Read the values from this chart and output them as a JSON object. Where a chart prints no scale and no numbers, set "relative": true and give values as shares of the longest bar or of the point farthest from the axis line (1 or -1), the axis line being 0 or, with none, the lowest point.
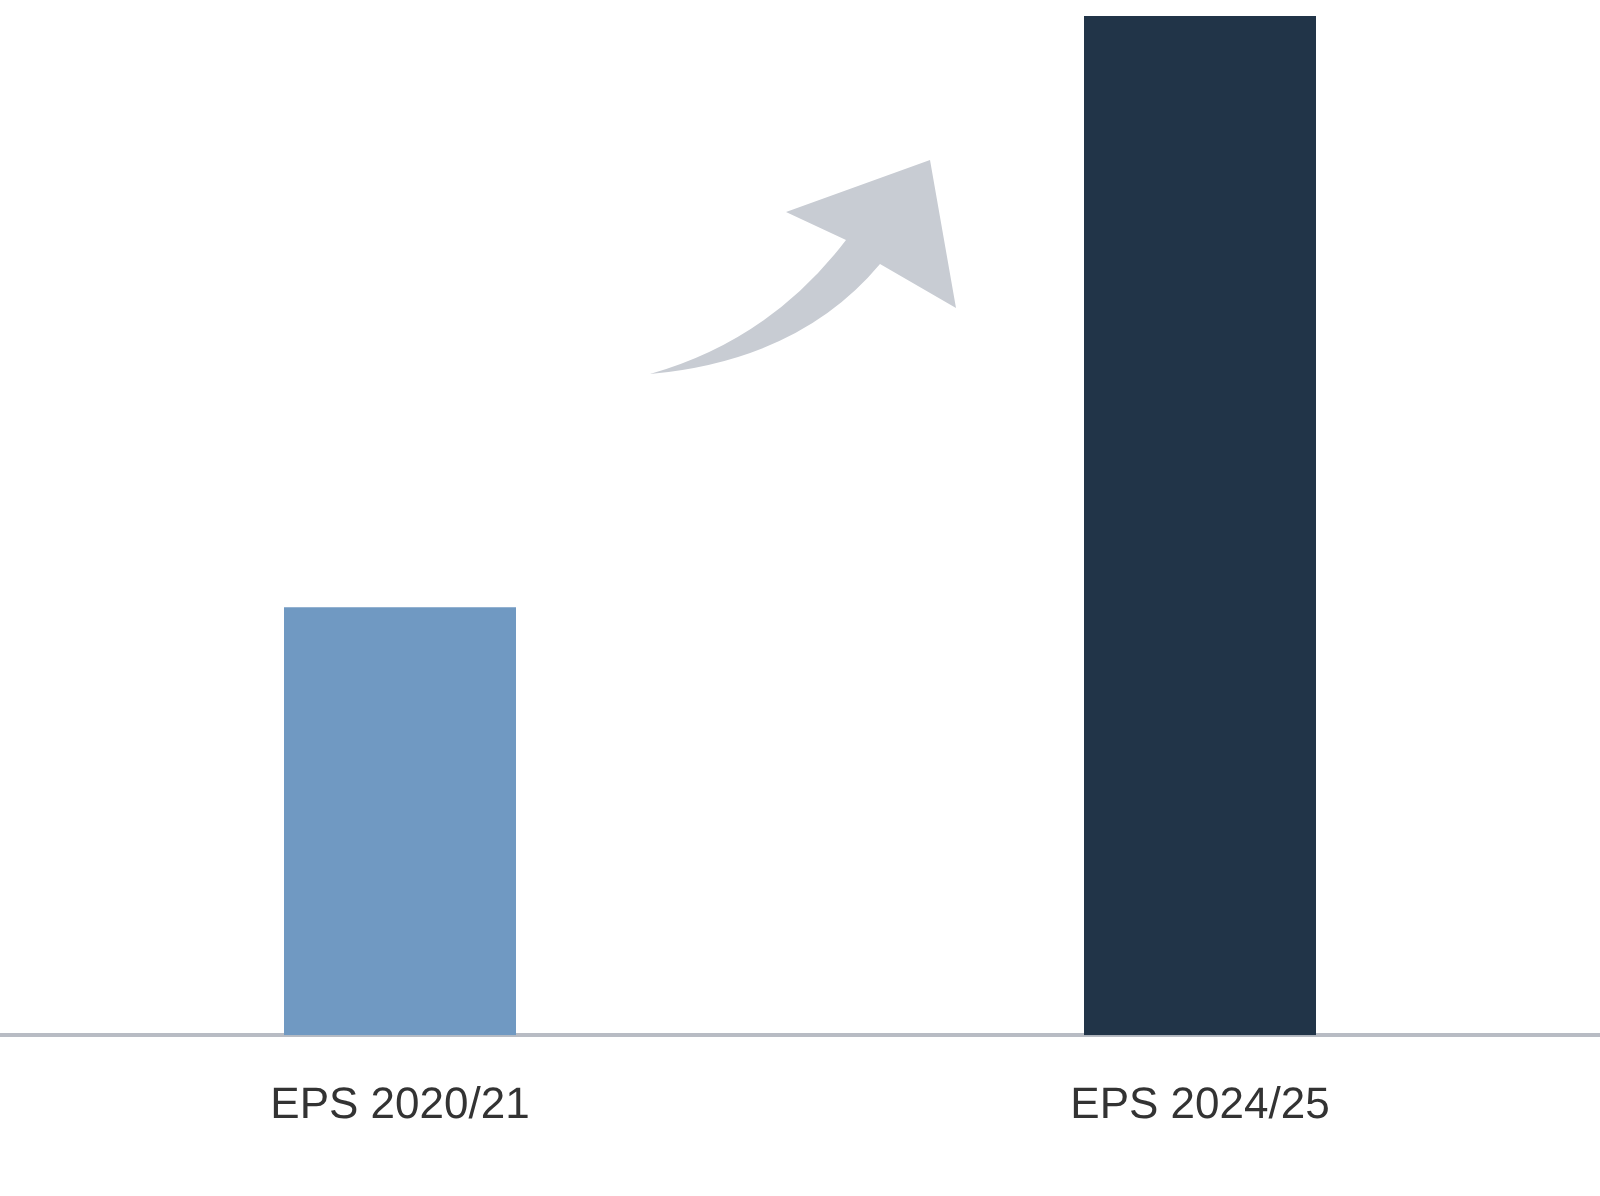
{
  "chart_data": {
    "type": "bar",
    "relative": true,
    "categories": [
      "EPS 2020/21",
      "EPS 2024/25"
    ],
    "values": [
      0.42,
      1
    ],
    "colors": [
      "#7099c2",
      "#213448"
    ],
    "grid": false,
    "legend": false
  }
}
